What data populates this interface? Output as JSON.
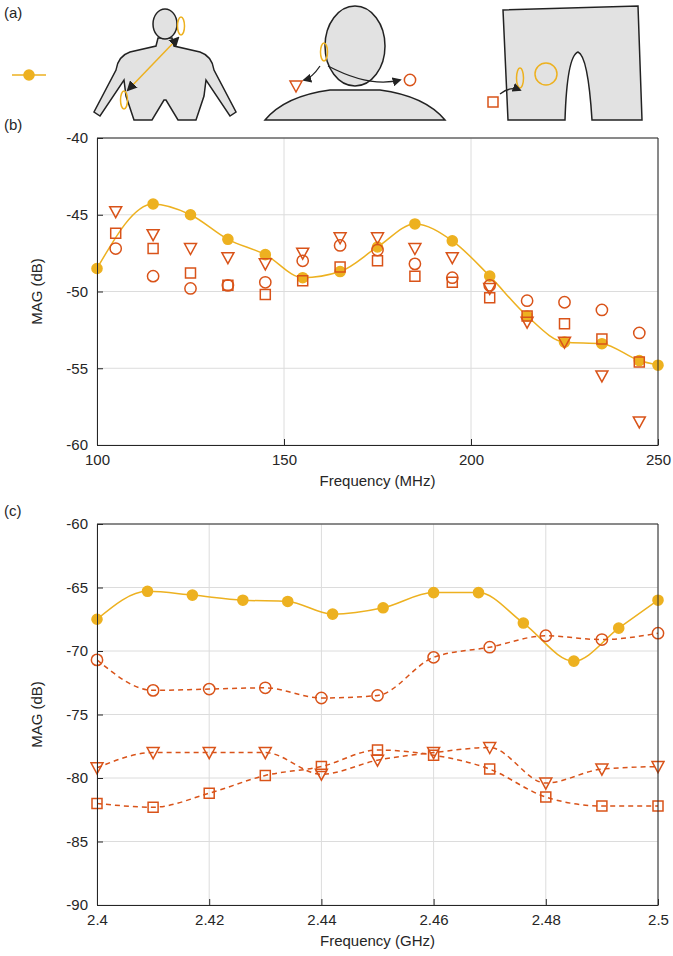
{
  "diagram": {
    "label": "(a)"
  },
  "chart_data": [
    {
      "type": "line",
      "title": "(b)",
      "x_label": "Frequency (MHz)",
      "y_label": "MAG (dB)",
      "xlim": [
        100,
        250
      ],
      "xticks": [
        100,
        150,
        200,
        250
      ],
      "ylim": [
        -60,
        -40
      ],
      "yticks": [
        -60,
        -55,
        -50,
        -45,
        -40
      ],
      "grid": true,
      "series": [
        {
          "color": "#edb120",
          "marker": "filled-circle",
          "line_style": "solid",
          "x": [
            100,
            115,
            125,
            135,
            145,
            155,
            165,
            175,
            185,
            195,
            205,
            215,
            225,
            235,
            245,
            250
          ],
          "values": [
            -48.5,
            -44.3,
            -45,
            -46.6,
            -47.6,
            -49.1,
            -48.7,
            -47.1,
            -45.6,
            -46.7,
            -49,
            -51.6,
            -53.3,
            -53.4,
            -54.5,
            -54.8
          ]
        },
        {
          "color": "#d95319",
          "marker": "triangle-down",
          "line_style": "none",
          "x": [
            105,
            115,
            125,
            135,
            145,
            155,
            165,
            175,
            185,
            195,
            205,
            215,
            225,
            235,
            245
          ],
          "values": [
            -44.8,
            -46.3,
            -47.2,
            -47.8,
            -48.2,
            -47.5,
            -46.5,
            -46.5,
            -47.2,
            -47.8,
            -49.8,
            -52,
            -53.3,
            -55.5,
            -58.5
          ]
        },
        {
          "color": "#d95319",
          "marker": "circle",
          "line_style": "none",
          "x": [
            105,
            115,
            125,
            135,
            145,
            155,
            165,
            175,
            185,
            195,
            205,
            215,
            225,
            235,
            245
          ],
          "values": [
            -47.2,
            -49,
            -49.8,
            -49.6,
            -49.4,
            -48,
            -47,
            -47.3,
            -48.2,
            -49.1,
            -49.6,
            -50.6,
            -50.7,
            -51.2,
            -52.7
          ]
        },
        {
          "color": "#d95319",
          "marker": "square",
          "line_style": "none",
          "x": [
            105,
            115,
            125,
            135,
            145,
            155,
            165,
            175,
            185,
            195,
            205,
            215,
            225,
            235,
            245
          ],
          "values": [
            -46.2,
            -47.2,
            -48.8,
            -49.6,
            -50.2,
            -49.3,
            -48.4,
            -48,
            -49,
            -49.4,
            -50.4,
            -51.6,
            -52.1,
            -53.1,
            -54.6
          ]
        }
      ]
    },
    {
      "type": "line",
      "title": "(c)",
      "x_label": "Frequency (GHz)",
      "y_label": "MAG (dB)",
      "xlim": [
        2.4,
        2.5
      ],
      "xticks": [
        2.4,
        2.42,
        2.44,
        2.46,
        2.48,
        2.5
      ],
      "ylim": [
        -90,
        -60
      ],
      "yticks": [
        -90,
        -85,
        -80,
        -75,
        -70,
        -65,
        -60
      ],
      "grid": true,
      "series": [
        {
          "color": "#edb120",
          "marker": "filled-circle",
          "line_style": "solid",
          "x": [
            2.4,
            2.409,
            2.417,
            2.426,
            2.434,
            2.442,
            2.451,
            2.46,
            2.468,
            2.476,
            2.485,
            2.493,
            2.5
          ],
          "values": [
            -67.5,
            -65.3,
            -65.6,
            -66,
            -66.1,
            -67.1,
            -66.6,
            -65.4,
            -65.4,
            -67.8,
            -70.8,
            -68.2,
            -66
          ]
        },
        {
          "color": "#d95319",
          "marker": "triangle-down",
          "line_style": "dashed",
          "x": [
            2.4,
            2.41,
            2.42,
            2.43,
            2.44,
            2.45,
            2.46,
            2.47,
            2.48,
            2.49,
            2.5
          ],
          "values": [
            -79.2,
            -78,
            -78,
            -78,
            -79.7,
            -78.6,
            -78,
            -77.6,
            -80.4,
            -79.3,
            -79.1
          ]
        },
        {
          "color": "#d95319",
          "marker": "circle",
          "line_style": "dashed",
          "x": [
            2.4,
            2.41,
            2.42,
            2.43,
            2.44,
            2.45,
            2.46,
            2.47,
            2.48,
            2.49,
            2.5
          ],
          "values": [
            -70.7,
            -73.1,
            -73,
            -72.9,
            -73.7,
            -73.5,
            -70.5,
            -69.7,
            -68.8,
            -69.1,
            -68.6
          ]
        },
        {
          "color": "#d95319",
          "marker": "square",
          "line_style": "dashed",
          "x": [
            2.4,
            2.41,
            2.42,
            2.43,
            2.44,
            2.45,
            2.46,
            2.47,
            2.48,
            2.49,
            2.5
          ],
          "values": [
            -82,
            -82.3,
            -81.2,
            -79.8,
            -79.1,
            -77.8,
            -78.2,
            -79.3,
            -81.5,
            -82.2,
            -82.2
          ]
        }
      ]
    }
  ]
}
